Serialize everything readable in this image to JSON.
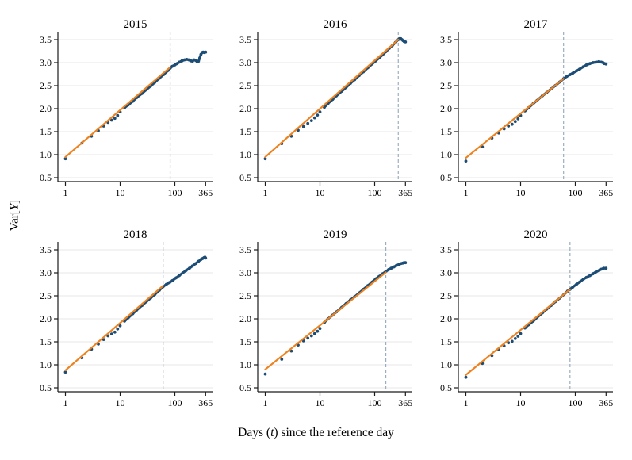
{
  "figure": {
    "background": "#ffffff"
  },
  "labels": {
    "ylabel_prefix": "Var[",
    "ylabel_italic": "Y",
    "ylabel_suffix": "]",
    "xlabel_prefix": "Days (",
    "xlabel_italic": "t",
    "xlabel_suffix": ") since the reference day"
  },
  "colors": {
    "scatter": "#1c4d76",
    "fit_line": "#ee821e",
    "cutoff_line": "#9aaec0",
    "gridline": "#e7e7e7",
    "axis": "#1a1a1a",
    "text": "#000000"
  },
  "chart_data": {
    "type": "scatter",
    "layout": "2x3 small multiples",
    "xscale": "log",
    "grid": "horizontal",
    "xlabel": "Days (t) since the reference day",
    "ylabel": "Var[Y]",
    "xticks": [
      1,
      10,
      100,
      365
    ],
    "xtick_labels": [
      "1",
      "10",
      "100",
      "365"
    ],
    "yticks": [
      0.5,
      1.0,
      1.5,
      2.0,
      2.5,
      3.0,
      3.5
    ],
    "ytick_labels": [
      "0.5",
      "1.0",
      "1.5",
      "2.0",
      "2.5",
      "3.0",
      "3.5"
    ],
    "xlim": [
      1,
      365
    ],
    "ylim": [
      0.4,
      3.7
    ],
    "panels": [
      {
        "title": "2015",
        "cutoff_day": 82,
        "fit_line": {
          "x": [
            1,
            82
          ],
          "y": [
            0.95,
            2.9
          ]
        },
        "points": [
          [
            1,
            0.91
          ],
          [
            2,
            1.25
          ],
          [
            3,
            1.4
          ],
          [
            4,
            1.52
          ],
          [
            5,
            1.62
          ],
          [
            6,
            1.7
          ],
          [
            7,
            1.75
          ],
          [
            8,
            1.79
          ],
          [
            9,
            1.85
          ],
          [
            10,
            1.93
          ],
          [
            12,
            2.02
          ],
          [
            14,
            2.08
          ],
          [
            17,
            2.16
          ],
          [
            20,
            2.24
          ],
          [
            25,
            2.33
          ],
          [
            30,
            2.41
          ],
          [
            36,
            2.49
          ],
          [
            43,
            2.57
          ],
          [
            52,
            2.66
          ],
          [
            62,
            2.74
          ],
          [
            75,
            2.83
          ],
          [
            82,
            2.88
          ],
          [
            90,
            2.92
          ],
          [
            100,
            2.95
          ],
          [
            110,
            2.98
          ],
          [
            120,
            3.01
          ],
          [
            135,
            3.04
          ],
          [
            150,
            3.06
          ],
          [
            165,
            3.07
          ],
          [
            180,
            3.06
          ],
          [
            195,
            3.04
          ],
          [
            210,
            3.03
          ],
          [
            225,
            3.06
          ],
          [
            240,
            3.05
          ],
          [
            255,
            3.02
          ],
          [
            270,
            3.03
          ],
          [
            285,
            3.1
          ],
          [
            300,
            3.18
          ],
          [
            315,
            3.22
          ],
          [
            330,
            3.23
          ],
          [
            345,
            3.22
          ],
          [
            365,
            3.23
          ]
        ]
      },
      {
        "title": "2016",
        "cutoff_day": 270,
        "fit_line": {
          "x": [
            1,
            270
          ],
          "y": [
            0.95,
            3.5
          ]
        },
        "points": [
          [
            1,
            0.91
          ],
          [
            2,
            1.24
          ],
          [
            3,
            1.4
          ],
          [
            4,
            1.53
          ],
          [
            5,
            1.61
          ],
          [
            6,
            1.68
          ],
          [
            7,
            1.74
          ],
          [
            8,
            1.8
          ],
          [
            9,
            1.86
          ],
          [
            10,
            1.93
          ],
          [
            12,
            2.03
          ],
          [
            14,
            2.11
          ],
          [
            17,
            2.2
          ],
          [
            20,
            2.28
          ],
          [
            25,
            2.38
          ],
          [
            30,
            2.46
          ],
          [
            36,
            2.55
          ],
          [
            43,
            2.63
          ],
          [
            52,
            2.72
          ],
          [
            62,
            2.8
          ],
          [
            75,
            2.89
          ],
          [
            90,
            2.97
          ],
          [
            105,
            3.04
          ],
          [
            120,
            3.1
          ],
          [
            140,
            3.17
          ],
          [
            160,
            3.24
          ],
          [
            185,
            3.31
          ],
          [
            210,
            3.37
          ],
          [
            240,
            3.44
          ],
          [
            270,
            3.5
          ],
          [
            285,
            3.52
          ],
          [
            300,
            3.52
          ],
          [
            315,
            3.5
          ],
          [
            330,
            3.48
          ],
          [
            345,
            3.46
          ],
          [
            365,
            3.45
          ]
        ]
      },
      {
        "title": "2017",
        "cutoff_day": 61,
        "fit_line": {
          "x": [
            1,
            61
          ],
          "y": [
            0.93,
            2.65
          ]
        },
        "points": [
          [
            1,
            0.86
          ],
          [
            2,
            1.17
          ],
          [
            3,
            1.36
          ],
          [
            4,
            1.47
          ],
          [
            5,
            1.56
          ],
          [
            6,
            1.62
          ],
          [
            7,
            1.66
          ],
          [
            8,
            1.72
          ],
          [
            9,
            1.78
          ],
          [
            10,
            1.85
          ],
          [
            12,
            1.95
          ],
          [
            14,
            2.02
          ],
          [
            17,
            2.11
          ],
          [
            20,
            2.18
          ],
          [
            25,
            2.28
          ],
          [
            30,
            2.35
          ],
          [
            36,
            2.43
          ],
          [
            43,
            2.5
          ],
          [
            52,
            2.58
          ],
          [
            61,
            2.65
          ],
          [
            70,
            2.7
          ],
          [
            80,
            2.74
          ],
          [
            90,
            2.77
          ],
          [
            105,
            2.82
          ],
          [
            120,
            2.86
          ],
          [
            140,
            2.91
          ],
          [
            160,
            2.95
          ],
          [
            185,
            2.98
          ],
          [
            210,
            3.0
          ],
          [
            240,
            3.01
          ],
          [
            270,
            3.02
          ],
          [
            300,
            3.01
          ],
          [
            320,
            3.0
          ],
          [
            340,
            2.98
          ],
          [
            365,
            2.97
          ]
        ]
      },
      {
        "title": "2018",
        "cutoff_day": 61,
        "fit_line": {
          "x": [
            1,
            61
          ],
          "y": [
            0.88,
            2.72
          ]
        },
        "points": [
          [
            1,
            0.84
          ],
          [
            2,
            1.15
          ],
          [
            3,
            1.34
          ],
          [
            4,
            1.45
          ],
          [
            5,
            1.55
          ],
          [
            6,
            1.63
          ],
          [
            7,
            1.67
          ],
          [
            8,
            1.71
          ],
          [
            9,
            1.78
          ],
          [
            10,
            1.85
          ],
          [
            12,
            1.95
          ],
          [
            14,
            2.02
          ],
          [
            17,
            2.11
          ],
          [
            20,
            2.19
          ],
          [
            25,
            2.29
          ],
          [
            30,
            2.37
          ],
          [
            36,
            2.45
          ],
          [
            43,
            2.53
          ],
          [
            52,
            2.62
          ],
          [
            61,
            2.7
          ],
          [
            70,
            2.75
          ],
          [
            80,
            2.79
          ],
          [
            90,
            2.83
          ],
          [
            105,
            2.89
          ],
          [
            120,
            2.94
          ],
          [
            140,
            3.0
          ],
          [
            160,
            3.05
          ],
          [
            185,
            3.1
          ],
          [
            210,
            3.15
          ],
          [
            240,
            3.2
          ],
          [
            270,
            3.25
          ],
          [
            300,
            3.29
          ],
          [
            320,
            3.31
          ],
          [
            340,
            3.33
          ],
          [
            355,
            3.34
          ],
          [
            365,
            3.32
          ]
        ]
      },
      {
        "title": "2019",
        "cutoff_day": 160,
        "fit_line": {
          "x": [
            1,
            160
          ],
          "y": [
            0.9,
            3.01
          ]
        },
        "points": [
          [
            1,
            0.8
          ],
          [
            2,
            1.12
          ],
          [
            3,
            1.3
          ],
          [
            4,
            1.43
          ],
          [
            5,
            1.52
          ],
          [
            6,
            1.58
          ],
          [
            7,
            1.63
          ],
          [
            8,
            1.68
          ],
          [
            9,
            1.73
          ],
          [
            10,
            1.79
          ],
          [
            12,
            1.92
          ],
          [
            14,
            2.0
          ],
          [
            17,
            2.08
          ],
          [
            20,
            2.15
          ],
          [
            25,
            2.25
          ],
          [
            30,
            2.33
          ],
          [
            36,
            2.41
          ],
          [
            43,
            2.48
          ],
          [
            52,
            2.56
          ],
          [
            62,
            2.64
          ],
          [
            75,
            2.72
          ],
          [
            90,
            2.8
          ],
          [
            105,
            2.87
          ],
          [
            120,
            2.92
          ],
          [
            140,
            2.98
          ],
          [
            160,
            3.03
          ],
          [
            180,
            3.07
          ],
          [
            200,
            3.1
          ],
          [
            225,
            3.13
          ],
          [
            250,
            3.16
          ],
          [
            275,
            3.18
          ],
          [
            300,
            3.2
          ],
          [
            325,
            3.21
          ],
          [
            345,
            3.22
          ],
          [
            365,
            3.22
          ]
        ]
      },
      {
        "title": "2020",
        "cutoff_day": 80,
        "fit_line": {
          "x": [
            1,
            80
          ],
          "y": [
            0.78,
            2.64
          ]
        },
        "points": [
          [
            1,
            0.73
          ],
          [
            2,
            1.03
          ],
          [
            3,
            1.2
          ],
          [
            4,
            1.33
          ],
          [
            5,
            1.41
          ],
          [
            6,
            1.48
          ],
          [
            7,
            1.51
          ],
          [
            8,
            1.57
          ],
          [
            9,
            1.62
          ],
          [
            10,
            1.68
          ],
          [
            12,
            1.8
          ],
          [
            14,
            1.87
          ],
          [
            17,
            1.95
          ],
          [
            20,
            2.03
          ],
          [
            25,
            2.13
          ],
          [
            30,
            2.21
          ],
          [
            36,
            2.29
          ],
          [
            43,
            2.37
          ],
          [
            52,
            2.45
          ],
          [
            62,
            2.53
          ],
          [
            72,
            2.6
          ],
          [
            80,
            2.64
          ],
          [
            90,
            2.69
          ],
          [
            105,
            2.75
          ],
          [
            120,
            2.8
          ],
          [
            140,
            2.86
          ],
          [
            160,
            2.9
          ],
          [
            185,
            2.94
          ],
          [
            210,
            2.98
          ],
          [
            240,
            3.02
          ],
          [
            270,
            3.05
          ],
          [
            300,
            3.08
          ],
          [
            330,
            3.1
          ],
          [
            365,
            3.1
          ]
        ]
      }
    ]
  }
}
